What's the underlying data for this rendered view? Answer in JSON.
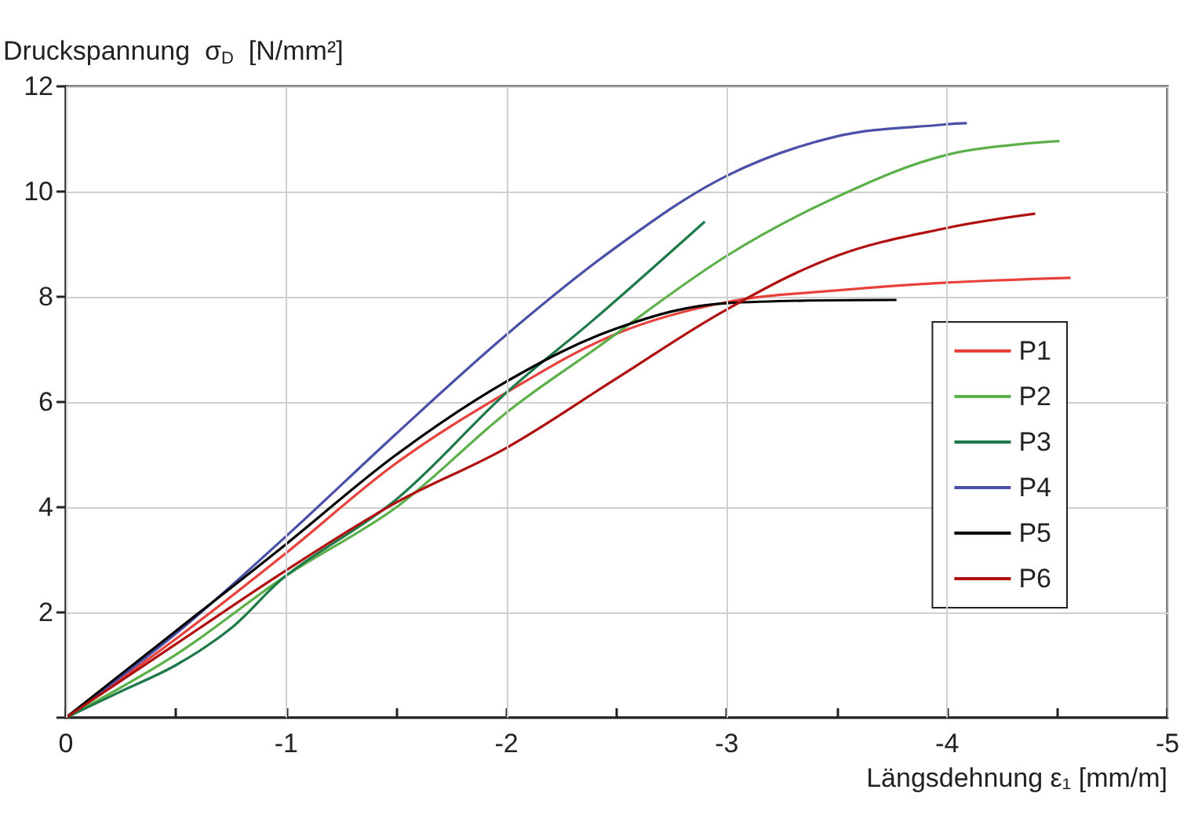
{
  "chart_data": {
    "type": "line",
    "xlabel": "Längsdehnung ε₁ [mm/m]",
    "ylabel": "Druckspannung  σ$_{D}$  [N/mm²]",
    "xlim": [
      0,
      -5
    ],
    "xticks": [
      0,
      {
        "value": -0.5,
        "label": null
      },
      -1,
      {
        "value": -1.5,
        "label": null
      },
      -2,
      {
        "value": -2.5,
        "label": null
      },
      -3,
      {
        "value": -3.5,
        "label": null
      },
      -4,
      {
        "value": -4.5,
        "label": null
      },
      -5
    ],
    "ylim": [
      0,
      12
    ],
    "yticks": [
      {
        "value": 0,
        "label": null
      },
      2,
      4,
      6,
      8,
      10,
      12
    ],
    "grid": true,
    "legend": "right",
    "series": [
      {
        "name": "P1",
        "color": "#e8413c",
        "x": [
          0,
          -0.5,
          -1,
          -1.5,
          -2,
          -2.5,
          -3,
          -3.5,
          -4,
          -4.56
        ],
        "values": [
          0,
          1.5,
          3.13,
          4.84,
          6.18,
          7.3,
          7.9,
          8.12,
          8.27,
          8.36
        ]
      },
      {
        "name": "P2",
        "color": "#5cb04a",
        "x": [
          0,
          -0.5,
          -1,
          -1.5,
          -2,
          -2.4,
          -3,
          -3.5,
          -4,
          -4.51
        ],
        "values": [
          0,
          1.2,
          2.7,
          4.0,
          5.8,
          7.0,
          8.78,
          9.9,
          10.7,
          10.96
        ]
      },
      {
        "name": "P3",
        "color": "#1f7a4a",
        "x": [
          0,
          -0.25,
          -0.5,
          -0.75,
          -1,
          -1.5,
          -2,
          -2.4,
          -2.9
        ],
        "values": [
          0,
          0.5,
          1.0,
          1.7,
          2.7,
          4.15,
          6.18,
          7.58,
          9.43
        ]
      },
      {
        "name": "P4",
        "color": "#4a4fa8",
        "x": [
          0,
          -0.5,
          -1,
          -1.5,
          -2,
          -2.5,
          -3,
          -3.5,
          -4,
          -4.09
        ],
        "values": [
          0,
          1.6,
          3.45,
          5.4,
          7.28,
          8.95,
          10.3,
          11.05,
          11.28,
          11.3
        ]
      },
      {
        "name": "P5",
        "color": "#000000",
        "x": [
          0,
          -0.5,
          -1,
          -1.5,
          -2,
          -2.5,
          -3,
          -3.77
        ],
        "values": [
          0,
          1.65,
          3.3,
          5.0,
          6.39,
          7.4,
          7.88,
          7.94
        ]
      },
      {
        "name": "P6",
        "color": "#b01010",
        "x": [
          0,
          -0.5,
          -1,
          -1.5,
          -2,
          -2.5,
          -3,
          -3.5,
          -4,
          -4.4
        ],
        "values": [
          0,
          1.4,
          2.8,
          4.09,
          5.13,
          6.45,
          7.76,
          8.78,
          9.31,
          9.58
        ]
      }
    ]
  }
}
